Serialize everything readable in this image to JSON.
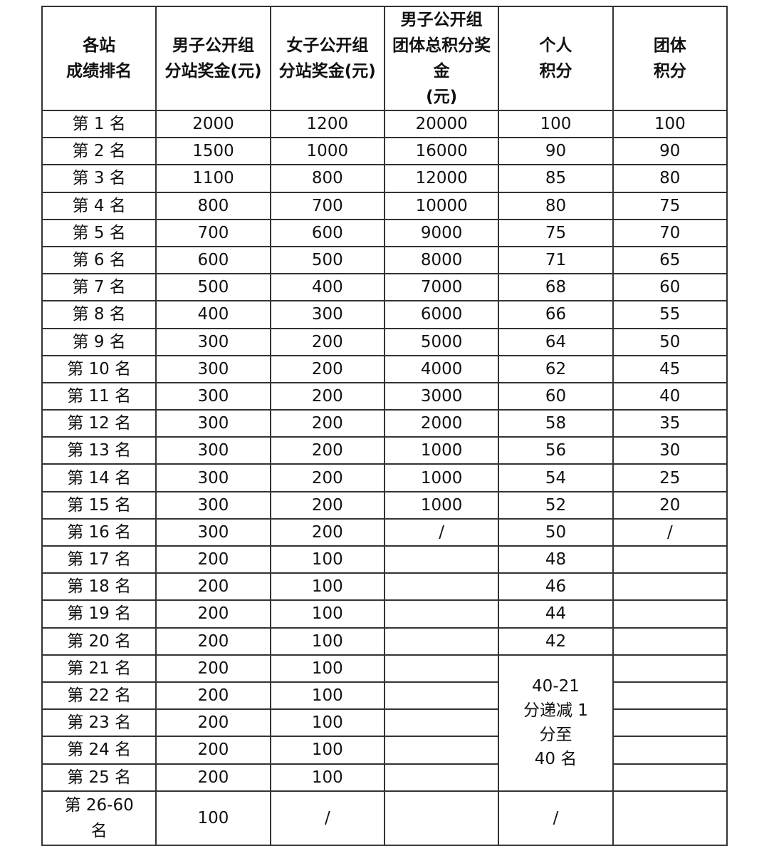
{
  "headers": [
    "各站\n成绩排名",
    "男子公开组\n分站奖金(元)",
    "女子公开组\n分站奖金(元)",
    "男子公开组\n团体总积分奖金\n(元)",
    "个人\n积分",
    "团体\n积分"
  ],
  "rows": [
    [
      "第 1 名",
      "2000",
      "1200",
      "20000",
      "100",
      "100"
    ],
    [
      "第 2 名",
      "1500",
      "1000",
      "16000",
      "90",
      "90"
    ],
    [
      "第 3 名",
      "1100",
      "800",
      "12000",
      "85",
      "80"
    ],
    [
      "第 4 名",
      "800",
      "700",
      "10000",
      "80",
      "75"
    ],
    [
      "第 5 名",
      "700",
      "600",
      "9000",
      "75",
      "70"
    ],
    [
      "第 6 名",
      "600",
      "500",
      "8000",
      "71",
      "65"
    ],
    [
      "第 7 名",
      "500",
      "400",
      "7000",
      "68",
      "60"
    ],
    [
      "第 8 名",
      "400",
      "300",
      "6000",
      "66",
      "55"
    ],
    [
      "第 9 名",
      "300",
      "200",
      "5000",
      "64",
      "50"
    ],
    [
      "第 10 名",
      "300",
      "200",
      "4000",
      "62",
      "45"
    ],
    [
      "第 11 名",
      "300",
      "200",
      "3000",
      "60",
      "40"
    ],
    [
      "第 12 名",
      "300",
      "200",
      "2000",
      "58",
      "35"
    ],
    [
      "第 13 名",
      "300",
      "200",
      "1000",
      "56",
      "30"
    ],
    [
      "第 14 名",
      "300",
      "200",
      "1000",
      "54",
      "25"
    ],
    [
      "第 15 名",
      "300",
      "200",
      "1000",
      "52",
      "20"
    ],
    [
      "第 16 名",
      "300",
      "200",
      "/",
      "50",
      "/"
    ],
    [
      "第 17 名",
      "200",
      "100",
      "",
      "48",
      ""
    ],
    [
      "第 18 名",
      "200",
      "100",
      "",
      "46",
      ""
    ],
    [
      "第 19 名",
      "200",
      "100",
      "",
      "44",
      ""
    ],
    [
      "第 20 名",
      "200",
      "100",
      "",
      "42",
      ""
    ],
    [
      "第 21 名",
      "200",
      "100",
      "",
      null,
      ""
    ],
    [
      "第 22 名",
      "200",
      "100",
      "",
      null,
      ""
    ],
    [
      "第 23 名",
      "200",
      "100",
      "",
      null,
      ""
    ],
    [
      "第 24 名",
      "200",
      "100",
      "",
      null,
      ""
    ],
    [
      "第 25 名",
      "200",
      "100",
      "",
      null,
      ""
    ]
  ],
  "merged_personal": "40-21\n分递减 1\n分至\n40 名",
  "last_row": [
    "第 26-60\n名",
    "100",
    "/",
    "",
    "/",
    ""
  ]
}
